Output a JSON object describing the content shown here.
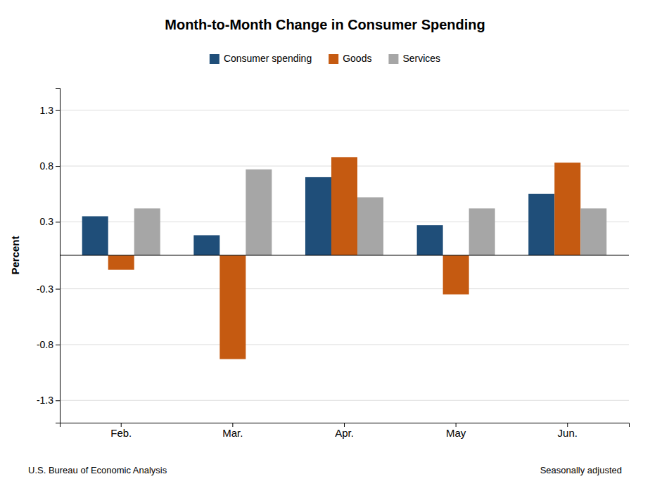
{
  "chart_data": {
    "type": "bar",
    "title": "Month-to-Month Change in Consumer Spending",
    "categories": [
      "Feb.",
      "Mar.",
      "Apr.",
      "May",
      "Jun."
    ],
    "series": [
      {
        "name": "Consumer spending",
        "color": "#1F4E79",
        "values": [
          0.35,
          0.18,
          0.7,
          0.27,
          0.55
        ]
      },
      {
        "name": "Goods",
        "color": "#C55A11",
        "values": [
          -0.13,
          -0.93,
          0.88,
          -0.35,
          0.83
        ]
      },
      {
        "name": "Services",
        "color": "#A6A6A6",
        "values": [
          0.42,
          0.77,
          0.52,
          0.42,
          0.42
        ]
      }
    ],
    "ylabel": "Percent",
    "ylim": [
      -1.5,
      1.5
    ],
    "yticks": [
      -1.3,
      -0.8,
      -0.3,
      0.3,
      0.8,
      1.3
    ],
    "grid": true,
    "legend": "top",
    "annotations": [
      "U.S. Bureau of Economic Analysis",
      "Seasonally adjusted"
    ]
  }
}
